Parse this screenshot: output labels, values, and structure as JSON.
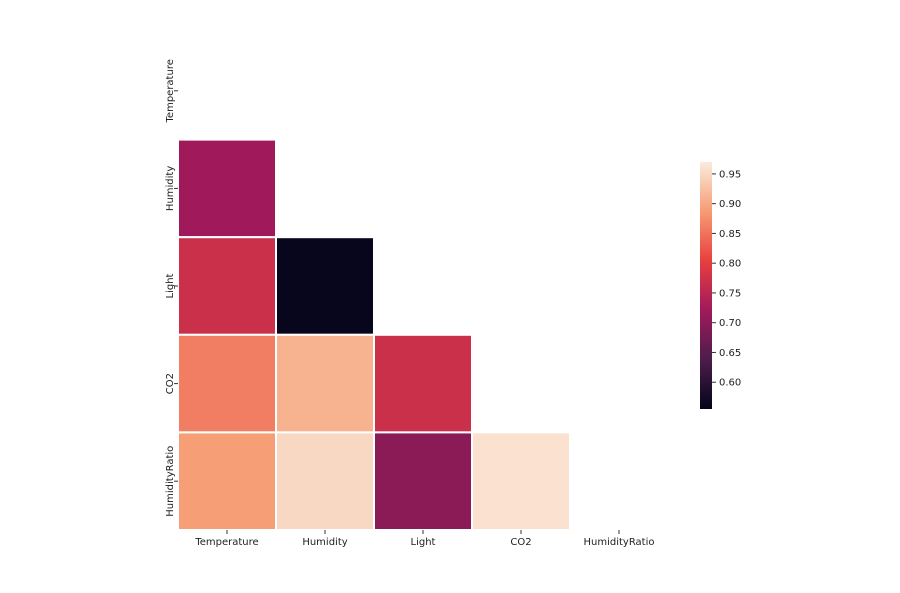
{
  "chart_data": {
    "type": "heatmap",
    "mask": "upper-triangle-including-diagonal",
    "x_categories": [
      "Temperature",
      "Humidity",
      "Light",
      "CO2",
      "HumidityRatio"
    ],
    "y_categories": [
      "Temperature",
      "Humidity",
      "Light",
      "CO2",
      "HumidityRatio"
    ],
    "values": [
      [
        null,
        null,
        null,
        null,
        null
      ],
      [
        0.72,
        null,
        null,
        null,
        null
      ],
      [
        0.77,
        0.56,
        null,
        null,
        null
      ],
      [
        0.86,
        0.91,
        0.77,
        null,
        null
      ],
      [
        0.89,
        0.95,
        0.7,
        0.96,
        null
      ]
    ],
    "colorbar": {
      "range": [
        0.555,
        0.97
      ],
      "ticks": [
        0.95,
        0.9,
        0.85,
        0.8,
        0.75,
        0.7,
        0.65,
        0.6
      ],
      "tick_labels": [
        "0.95",
        "0.90",
        "0.85",
        "0.80",
        "0.75",
        "0.70",
        "0.65",
        "0.60"
      ],
      "colormap": "rocket"
    },
    "title": "",
    "xlabel": "",
    "ylabel": "",
    "grid": false
  }
}
